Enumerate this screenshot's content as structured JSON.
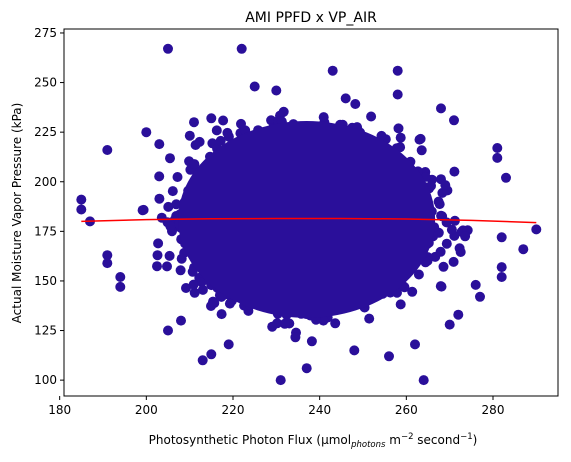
{
  "chart_data": {
    "type": "scatter",
    "title": "AMI PPFD x VP_AIR",
    "xlabel": {
      "main": "Photosynthetic Photon Flux (μmol",
      "sub": "photons",
      "mid": " m",
      "sup1": "−2",
      "mid2": " second",
      "sup2": "−1",
      "end": ")"
    },
    "ylabel": "Actual Moisture Vapor Pressure (kPa)",
    "xlim": [
      181,
      295
    ],
    "ylim": [
      92,
      277
    ],
    "x_ticks": [
      180,
      200,
      220,
      240,
      260,
      280
    ],
    "y_ticks": [
      100,
      125,
      150,
      175,
      200,
      225,
      250,
      275
    ],
    "grid": false,
    "point_color": "#2a0f9a",
    "trend_color": "#ff0000",
    "cloud": {
      "x_center": 237,
      "y_center": 181,
      "x_spread": 13,
      "y_spread": 20,
      "x_half_width": 38,
      "y_half_width": 62
    },
    "outliers": [
      {
        "x": 205,
        "y": 267
      },
      {
        "x": 222,
        "y": 267
      },
      {
        "x": 243,
        "y": 256
      },
      {
        "x": 258,
        "y": 256
      },
      {
        "x": 231,
        "y": 100
      },
      {
        "x": 264,
        "y": 100
      },
      {
        "x": 237,
        "y": 106
      },
      {
        "x": 213,
        "y": 110
      },
      {
        "x": 191,
        "y": 216
      },
      {
        "x": 185,
        "y": 191
      },
      {
        "x": 185,
        "y": 186
      },
      {
        "x": 187,
        "y": 180
      },
      {
        "x": 290,
        "y": 176
      },
      {
        "x": 287,
        "y": 166
      },
      {
        "x": 283,
        "y": 202
      },
      {
        "x": 282,
        "y": 172
      },
      {
        "x": 282,
        "y": 157
      },
      {
        "x": 282,
        "y": 152
      },
      {
        "x": 281,
        "y": 217
      },
      {
        "x": 281,
        "y": 212
      },
      {
        "x": 191,
        "y": 163
      },
      {
        "x": 191,
        "y": 159
      },
      {
        "x": 194,
        "y": 147
      },
      {
        "x": 194,
        "y": 152
      },
      {
        "x": 200,
        "y": 225
      },
      {
        "x": 203,
        "y": 219
      },
      {
        "x": 211,
        "y": 230
      },
      {
        "x": 215,
        "y": 232
      },
      {
        "x": 225,
        "y": 248
      },
      {
        "x": 230,
        "y": 246
      },
      {
        "x": 208,
        "y": 130
      },
      {
        "x": 205,
        "y": 125
      },
      {
        "x": 215,
        "y": 113
      },
      {
        "x": 256,
        "y": 112
      },
      {
        "x": 262,
        "y": 118
      },
      {
        "x": 270,
        "y": 128
      },
      {
        "x": 272,
        "y": 133
      },
      {
        "x": 276,
        "y": 148
      },
      {
        "x": 277,
        "y": 142
      },
      {
        "x": 268,
        "y": 237
      },
      {
        "x": 271,
        "y": 231
      },
      {
        "x": 258,
        "y": 244
      },
      {
        "x": 246,
        "y": 242
      },
      {
        "x": 219,
        "y": 118
      },
      {
        "x": 248,
        "y": 115
      }
    ],
    "trend_line": {
      "x": [
        185,
        200,
        215,
        230,
        245,
        260,
        275,
        290
      ],
      "y": [
        180.0,
        180.9,
        181.3,
        181.5,
        181.5,
        181.2,
        180.5,
        179.4
      ]
    }
  }
}
